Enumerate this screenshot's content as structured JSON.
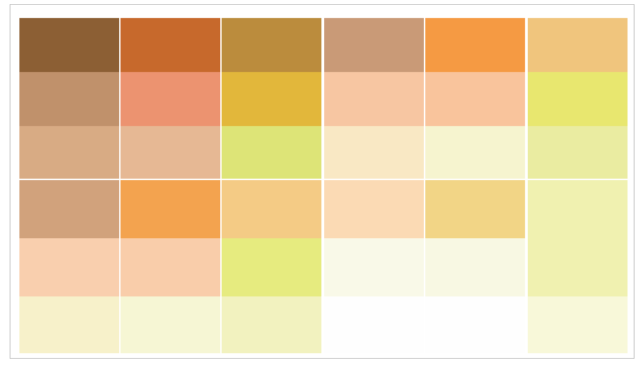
{
  "palette": {
    "columns": [
      {
        "name": "column-1",
        "cells": [
          {
            "color": "#8c5f34"
          },
          {
            "color": "#c0916b"
          },
          {
            "color": "#d8ab84"
          },
          {
            "color": "#d1a27c"
          },
          {
            "color": "#f9cfae"
          },
          {
            "color": "#f7f1ca"
          }
        ]
      },
      {
        "name": "column-2",
        "cells": [
          {
            "color": "#c7692c"
          },
          {
            "color": "#ec9370"
          },
          {
            "color": "#e6b894"
          },
          {
            "color": "#f3a34f"
          },
          {
            "color": "#f9cdaa"
          },
          {
            "color": "#f6f6d4"
          }
        ]
      },
      {
        "name": "column-3",
        "cells": [
          {
            "color": "#bb8c3d"
          },
          {
            "color": "#e2b73b"
          },
          {
            "color": "#dde477"
          },
          {
            "color": "#f4cb85"
          },
          {
            "color": "#e6eb7f"
          },
          {
            "color": "#f2f2bf"
          }
        ]
      },
      {
        "name": "column-4",
        "cells": [
          {
            "color": "#c99a77"
          },
          {
            "color": "#f7c6a2"
          },
          {
            "color": "#f9e8c4"
          },
          {
            "color": "#fbdab4"
          },
          {
            "color": "#f9f9e8"
          },
          {
            "color": "#fefefe"
          }
        ]
      },
      {
        "name": "column-5",
        "cells": [
          {
            "color": "#f59a43"
          },
          {
            "color": "#f9c49c"
          },
          {
            "color": "#f6f4cf"
          },
          {
            "color": "#f2d586"
          },
          {
            "color": "#f8f8e3"
          },
          {
            "color": "#fefefe"
          }
        ]
      },
      {
        "name": "column-6",
        "cells": [
          {
            "color": "#f0c57d"
          },
          {
            "color": "#e8e76f"
          },
          {
            "color": "#eaeca1"
          },
          {
            "color": "#f0f1b0"
          },
          {
            "color": "#f0f1b0"
          },
          {
            "color": "#f8f8d9"
          }
        ]
      }
    ]
  }
}
